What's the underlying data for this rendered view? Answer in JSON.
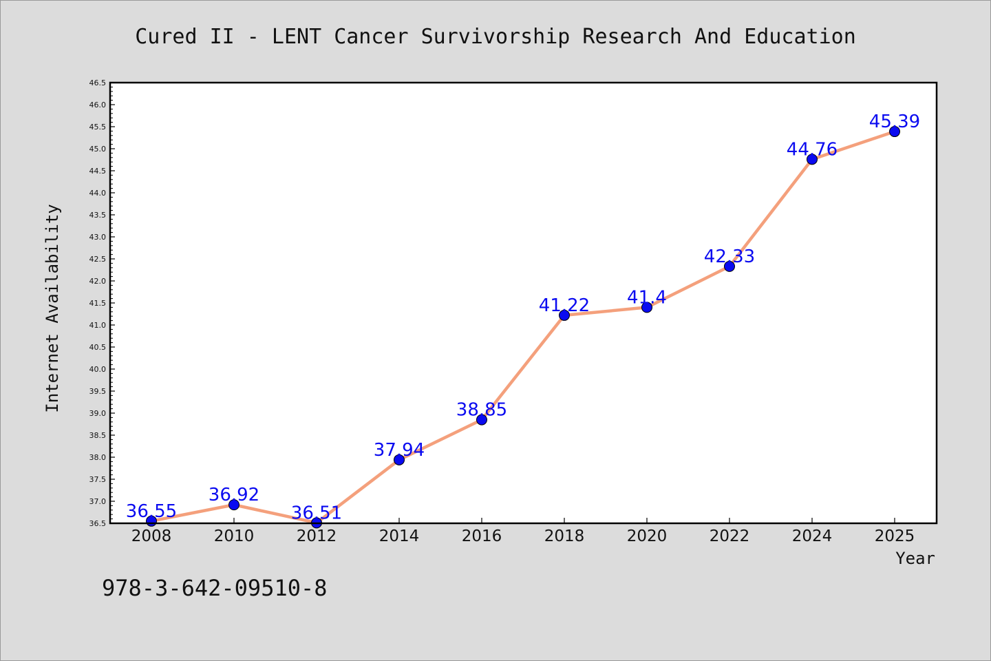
{
  "chart_data": {
    "type": "line",
    "title": "Cured II - LENT Cancer Survivorship Research And Education",
    "xlabel": "Year",
    "ylabel": "Internet Availability",
    "categories": [
      "2008",
      "2010",
      "2012",
      "2014",
      "2016",
      "2018",
      "2020",
      "2022",
      "2024",
      "2025"
    ],
    "series": [
      {
        "values": [
          36.55,
          36.92,
          36.51,
          37.94,
          38.85,
          41.22,
          41.4,
          42.33,
          44.76,
          45.39
        ],
        "data_labels": [
          "36.55",
          "36.92",
          "36.51",
          "37.94",
          "38.85",
          "41.22",
          "41.4",
          "42.33",
          "44.76",
          "45.39"
        ]
      }
    ],
    "ylim": [
      36.5,
      46.5
    ],
    "y_ticks": [
      "36.5",
      "37.0",
      "37.5",
      "38.0",
      "38.5",
      "39.0",
      "39.5",
      "40.0",
      "40.5",
      "41.0",
      "41.5",
      "42.0",
      "42.5",
      "43.0",
      "43.5",
      "44.0",
      "44.5",
      "45.0",
      "45.5",
      "46.0",
      "46.5"
    ],
    "grid": false,
    "legend": "none",
    "colors": {
      "line": "#f4a07c",
      "marker": "#0a0af0",
      "label": "#0a0af0",
      "background": "#dcdcdc",
      "plot_background": "#ffffff"
    }
  },
  "footer": {
    "isbn": "978-3-642-09510-8"
  }
}
